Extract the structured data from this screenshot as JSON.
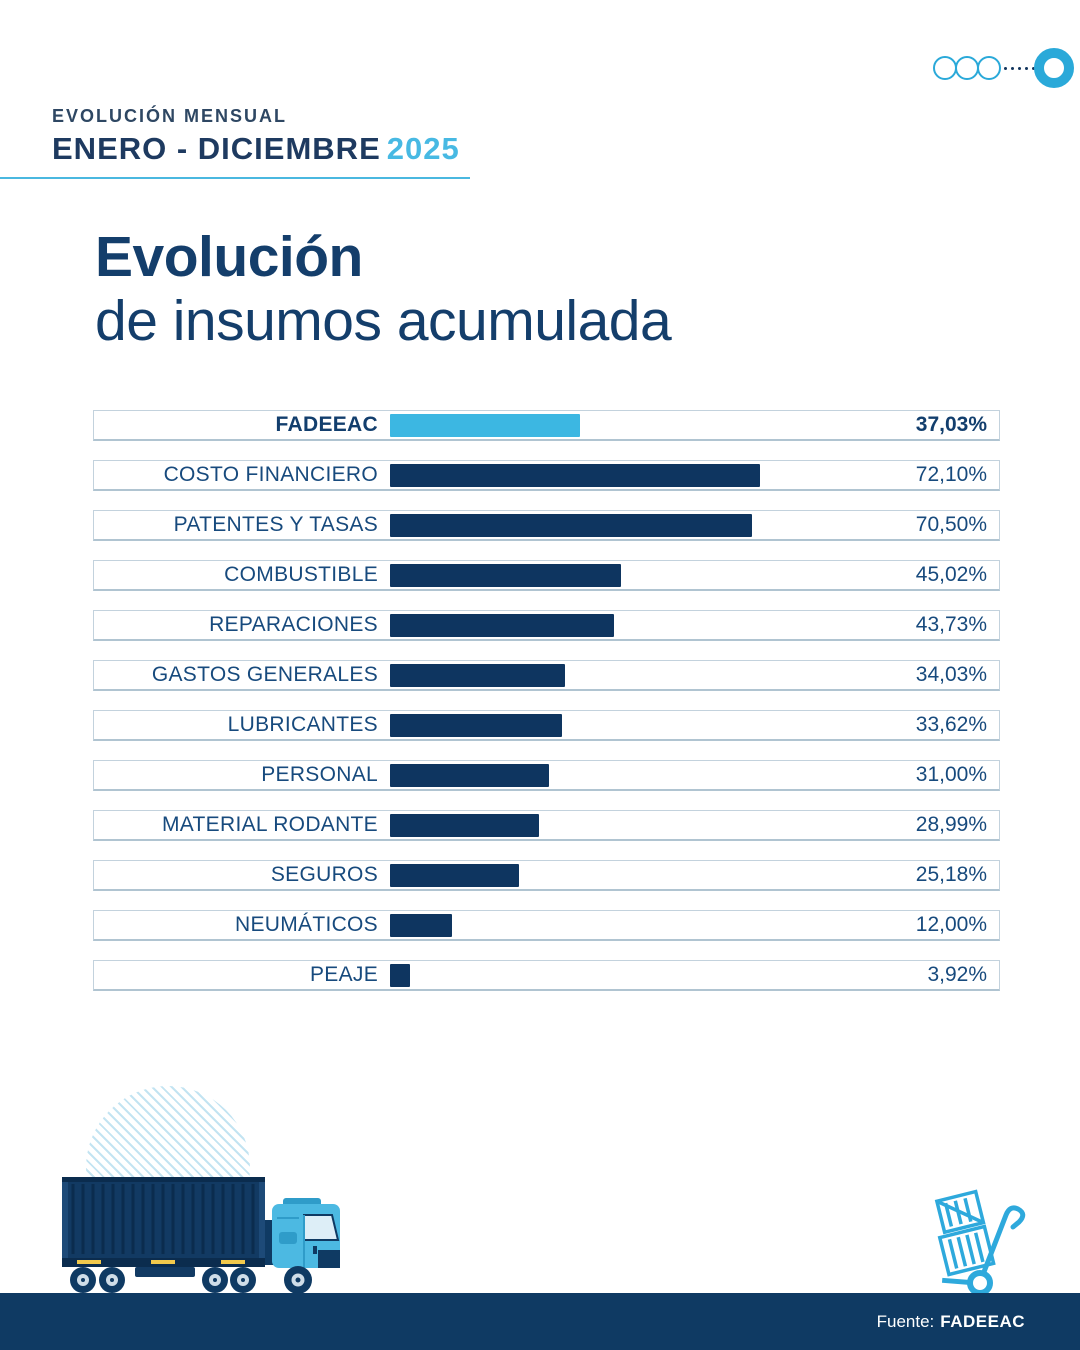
{
  "header": {
    "kicker": "EVOLUCIÓN MENSUAL",
    "period": "ENERO - DICIEMBRE",
    "year": "2025"
  },
  "title": {
    "line1": "Evolución",
    "line2": "de insumos acumulada"
  },
  "chart_data": {
    "type": "bar",
    "orientation": "horizontal",
    "unit": "%",
    "categories": [
      "FADEEAC",
      "COSTO FINANCIERO",
      "PATENTES Y TASAS",
      "COMBUSTIBLE",
      "REPARACIONES",
      "GASTOS GENERALES",
      "LUBRICANTES",
      "PERSONAL",
      "MATERIAL RODANTE",
      "SEGUROS",
      "NEUMÁTICOS",
      "PEAJE"
    ],
    "values": [
      37.03,
      72.1,
      70.5,
      45.02,
      43.73,
      34.03,
      33.62,
      31.0,
      28.99,
      25.18,
      12.0,
      3.92
    ],
    "value_labels": [
      "37,03%",
      "72,10%",
      "70,50%",
      "45,02%",
      "43,73%",
      "34,03%",
      "33,62%",
      "31,00%",
      "28,99%",
      "25,18%",
      "12,00%",
      "3,92%"
    ],
    "highlight_index": 0,
    "xlim": [
      0,
      100
    ],
    "grid": false,
    "legend": false,
    "bar_color_default": "#0e3560",
    "bar_color_highlight": "#3cb7e2"
  },
  "footer": {
    "source_label": "Fuente:",
    "source_name": "FADEEAC"
  },
  "colors": {
    "navy_dark": "#0e3560",
    "navy_text": "#174a7d",
    "title_navy": "#143e6b",
    "light_blue": "#3cb7e2",
    "logo_blue": "#2aa9d9",
    "row_border": "#c3d2dd",
    "footer_bg": "#0f3a63",
    "stripe_blue": "#c3e4f2",
    "accent_yellow": "#f2c94c"
  }
}
